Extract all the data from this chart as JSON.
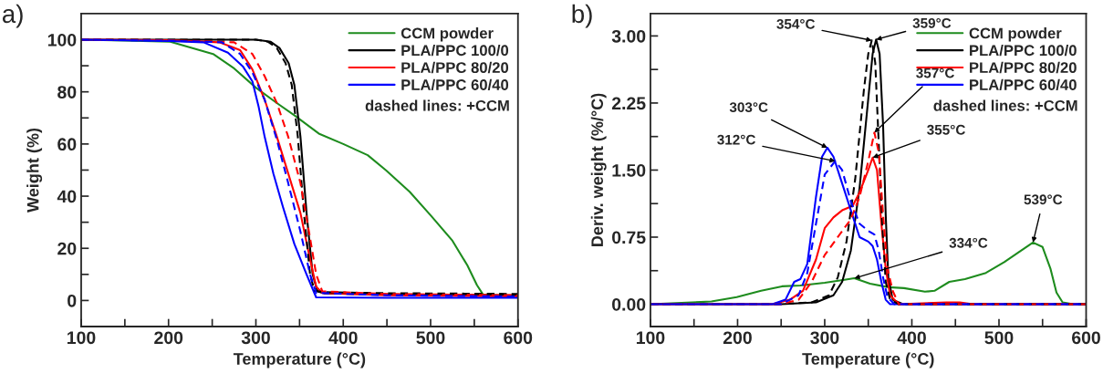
{
  "chart_data": [
    {
      "type": "line",
      "xlabel": "Temperature (°C)",
      "ylabel": "Weight (%)",
      "xlim": [
        100,
        600
      ],
      "ylim": [
        -10,
        110
      ],
      "xticks": [
        100,
        {
          "value": 150,
          "label": null
        },
        200,
        {
          "value": 250,
          "label": null
        },
        300,
        {
          "value": 350,
          "label": null
        },
        400,
        {
          "value": 450,
          "label": null
        },
        500,
        {
          "value": 550,
          "label": null
        },
        600
      ],
      "yticks": [
        0,
        {
          "value": 10,
          "label": null
        },
        20,
        {
          "value": 30,
          "label": null
        },
        40,
        {
          "value": 50,
          "label": null
        },
        60,
        {
          "value": 70,
          "label": null
        },
        80,
        {
          "value": 90,
          "label": null
        },
        100
      ],
      "legend": "top right",
      "grid": false,
      "annotations": [
        "a)",
        "dashed lines: +CCM"
      ],
      "series": [
        {
          "name": "CCM powder",
          "color": "#1e8c1e",
          "line_style": "solid",
          "x": [
            100,
            150,
            202,
            251,
            275,
            300,
            324,
            344,
            372,
            400,
            428,
            449,
            476,
            501,
            525,
            542,
            553,
            560,
            580,
            600
          ],
          "values": [
            100,
            99.7,
            99.2,
            94.5,
            89,
            81.6,
            75.7,
            71,
            64,
            60,
            55.7,
            49.9,
            41.7,
            32.3,
            22.9,
            13.5,
            5.9,
            2.3,
            1.8,
            1.5
          ]
        },
        {
          "name": "PLA/PPC 100/0",
          "color": "#000000",
          "line_style": "solid",
          "x": [
            100,
            200,
            300,
            317,
            327,
            337.5,
            344,
            351,
            358,
            365,
            370.5,
            379,
            450,
            600
          ],
          "values": [
            100,
            100,
            100,
            99.2,
            96.8,
            91,
            82.7,
            62.8,
            33.5,
            10,
            3.5,
            2.7,
            2.3,
            2
          ]
        },
        {
          "name": "PLA/PPC 80/20",
          "color": "#ff0000",
          "line_style": "solid",
          "x": [
            100,
            200,
            258,
            282,
            296,
            310,
            324,
            337,
            351,
            362,
            369,
            376,
            450,
            600
          ],
          "values": [
            100,
            99.8,
            99,
            96,
            88.6,
            77,
            62.8,
            48.7,
            33.5,
            15.8,
            5.3,
            2.9,
            2,
            1.5
          ]
        },
        {
          "name": "PLA/PPC 60/40",
          "color": "#0000ff",
          "line_style": "solid",
          "x": [
            100,
            200,
            240,
            268,
            285,
            296,
            303,
            310,
            320,
            331,
            344,
            358,
            369,
            450,
            600
          ],
          "values": [
            100,
            99.5,
            99,
            95,
            89.8,
            84,
            74.5,
            62.8,
            48.7,
            35.8,
            21.7,
            10,
            1.2,
            1,
            1
          ]
        },
        {
          "color": "#000000",
          "line_style": "dashed",
          "x": [
            100,
            200,
            300,
            314,
            324,
            334,
            341,
            348,
            355,
            362,
            367,
            376,
            450,
            600
          ],
          "values": [
            100,
            100,
            100,
            99.2,
            96.8,
            91,
            82.7,
            62.8,
            33.5,
            10,
            3.8,
            3.2,
            2.8,
            2.5
          ]
        },
        {
          "color": "#ff0000",
          "line_style": "dashed",
          "x": [
            100,
            200,
            275,
            296,
            310,
            324,
            337,
            351,
            362,
            369,
            376,
            450,
            600
          ],
          "values": [
            100,
            99.8,
            99,
            94.5,
            86,
            75.7,
            62.8,
            45,
            24,
            10,
            3.5,
            2.5,
            2
          ]
        },
        {
          "color": "#0000ff",
          "line_style": "dashed",
          "x": [
            100,
            200,
            261,
            282,
            296,
            310,
            324,
            337,
            351,
            362,
            369,
            450,
            600
          ],
          "values": [
            100,
            99.6,
            99,
            94.5,
            87.4,
            77,
            61.6,
            45,
            26.4,
            10,
            2.9,
            2,
            1.5
          ]
        }
      ]
    },
    {
      "type": "line",
      "xlabel": "Temperature (°C)",
      "ylabel": "Deriv. weight (%/°C)",
      "xlim": [
        100,
        600
      ],
      "ylim": [
        -0.25,
        3.25
      ],
      "xticks": [
        100,
        {
          "value": 150,
          "label": null
        },
        200,
        {
          "value": 250,
          "label": null
        },
        300,
        {
          "value": 350,
          "label": null
        },
        400,
        {
          "value": 450,
          "label": null
        },
        500,
        {
          "value": 550,
          "label": null
        },
        600
      ],
      "yticks": [
        {
          "value": 0,
          "label": "0.00"
        },
        {
          "value": 0.375,
          "label": null
        },
        0.75,
        {
          "value": 1.125,
          "label": null
        },
        {
          "value": 1.5,
          "label": "1.50"
        },
        {
          "value": 1.875,
          "label": null
        },
        2.25,
        {
          "value": 2.625,
          "label": null
        },
        {
          "value": 3,
          "label": "3.00"
        }
      ],
      "legend": "top right",
      "grid": false,
      "annotations": [
        "b)",
        "dashed lines: +CCM",
        {
          "text": "354°C",
          "x": 354,
          "y": 2.95
        },
        {
          "text": "359°C",
          "x": 359,
          "y": 2.96
        },
        {
          "text": "357°C",
          "x": 357,
          "y": 1.92
        },
        {
          "text": "355°C",
          "x": 355,
          "y": 1.64
        },
        {
          "text": "303°C",
          "x": 303,
          "y": 1.75
        },
        {
          "text": "312°C",
          "x": 312,
          "y": 1.6
        },
        {
          "text": "334°C",
          "x": 334,
          "y": 0.29
        },
        {
          "text": "539°C",
          "x": 539,
          "y": 0.69
        }
      ],
      "series": [
        {
          "name": "CCM powder",
          "color": "#1e8c1e",
          "line_style": "solid",
          "x": [
            100,
            170,
            199,
            227,
            251,
            272,
            300,
            321,
            334,
            352,
            373,
            391,
            415,
            426,
            443,
            461,
            485,
            506,
            524,
            539,
            550,
            559,
            566,
            573,
            585,
            600
          ],
          "values": [
            0,
            0.03,
            0.08,
            0.15,
            0.2,
            0.21,
            0.24,
            0.27,
            0.29,
            0.23,
            0.19,
            0.18,
            0.14,
            0.15,
            0.25,
            0.28,
            0.35,
            0.47,
            0.59,
            0.69,
            0.64,
            0.4,
            0.13,
            0.02,
            0,
            0
          ]
        },
        {
          "name": "PLA/PPC 100/0",
          "color": "#000000",
          "line_style": "solid",
          "x": [
            100,
            250,
            290,
            310,
            320,
            330,
            340,
            350,
            355,
            359,
            363,
            367,
            370,
            373,
            378,
            390,
            600
          ],
          "values": [
            0,
            0,
            0.02,
            0.1,
            0.25,
            0.6,
            1.3,
            2.3,
            2.8,
            2.96,
            2.8,
            2,
            1,
            0.3,
            0.05,
            0,
            0
          ]
        },
        {
          "name": "PLA/PPC 80/20",
          "color": "#ff0000",
          "line_style": "solid",
          "x": [
            100,
            240,
            260,
            275,
            290,
            300,
            310,
            320,
            332,
            340,
            350,
            355,
            360,
            365,
            370,
            375,
            385,
            440,
            455,
            470,
            600
          ],
          "values": [
            0,
            0,
            0.05,
            0.15,
            0.5,
            0.85,
            0.97,
            1.05,
            1.1,
            1.25,
            1.5,
            1.64,
            1.5,
            0.9,
            0.4,
            0.1,
            0,
            0.02,
            0.02,
            0,
            0
          ]
        },
        {
          "name": "PLA/PPC 60/40",
          "color": "#0000ff",
          "line_style": "solid",
          "x": [
            100,
            240,
            255,
            265,
            272,
            280,
            290,
            297,
            303,
            310,
            320,
            330,
            340,
            350,
            355,
            360,
            365,
            370,
            375,
            600
          ],
          "values": [
            0,
            0,
            0.05,
            0.25,
            0.28,
            0.45,
            1.2,
            1.65,
            1.75,
            1.65,
            1.35,
            1.05,
            0.75,
            0.7,
            0.65,
            0.5,
            0.25,
            0.05,
            0,
            0
          ]
        },
        {
          "color": "#000000",
          "line_style": "dashed",
          "x": [
            100,
            245,
            285,
            305,
            315,
            325,
            335,
            345,
            350,
            354,
            358,
            362,
            366,
            370,
            375,
            385,
            600
          ],
          "values": [
            0,
            0,
            0.02,
            0.1,
            0.3,
            0.7,
            1.4,
            2.4,
            2.8,
            2.95,
            2.7,
            1.8,
            0.9,
            0.25,
            0.05,
            0,
            0
          ]
        },
        {
          "color": "#ff0000",
          "line_style": "dashed",
          "x": [
            100,
            250,
            270,
            285,
            300,
            315,
            330,
            340,
            350,
            357,
            362,
            367,
            372,
            378,
            385,
            600
          ],
          "values": [
            0,
            0,
            0.05,
            0.25,
            0.55,
            0.75,
            0.95,
            1.2,
            1.6,
            1.92,
            1.7,
            1,
            0.4,
            0.15,
            0,
            0
          ]
        },
        {
          "color": "#0000ff",
          "line_style": "dashed",
          "x": [
            100,
            250,
            270,
            280,
            290,
            300,
            312,
            320,
            330,
            340,
            350,
            357,
            362,
            367,
            372,
            380,
            600
          ],
          "values": [
            0,
            0,
            0.1,
            0.35,
            0.9,
            1.45,
            1.6,
            1.5,
            1.15,
            0.9,
            0.82,
            0.78,
            0.6,
            0.3,
            0.08,
            0,
            0
          ]
        }
      ]
    }
  ]
}
